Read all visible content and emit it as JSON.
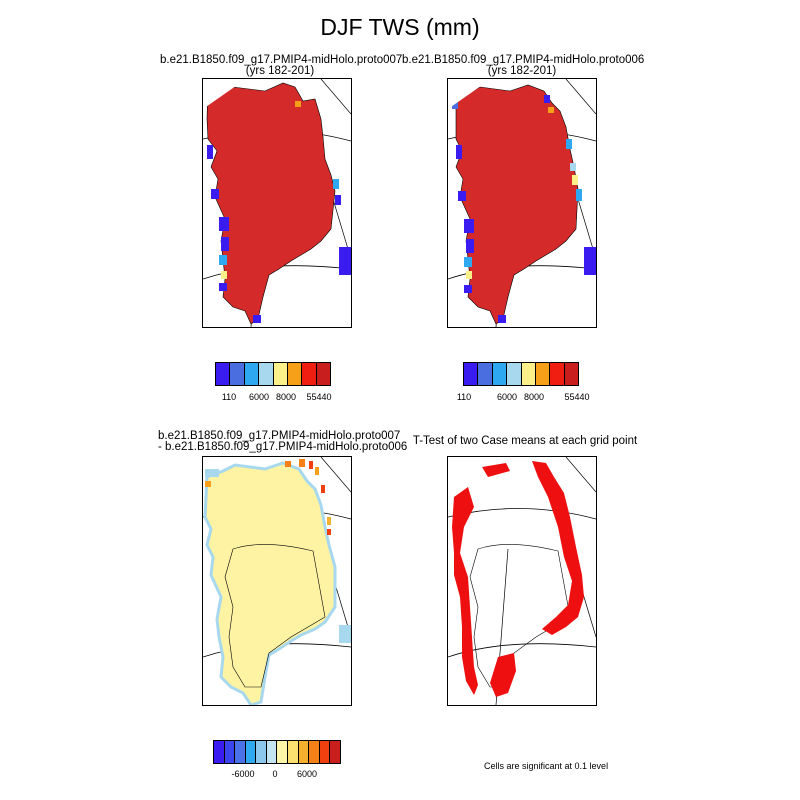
{
  "figure": {
    "title": "DJF TWS (mm)",
    "note": "Cells are significant at 0.1 level"
  },
  "panels": [
    {
      "id": "case1",
      "title_line1": "b.e21.B1850.f09_g17.PMIP4-midHolo.proto007",
      "title_line2": "(yrs 182-201)"
    },
    {
      "id": "case2",
      "title_line1": "b.e21.B1850.f09_g17.PMIP4-midHolo.proto006",
      "title_line2": "(yrs 182-201)"
    },
    {
      "id": "diff",
      "title_line1": "b.e21.B1850.f09_g17.PMIP4-midHolo.proto007",
      "title_line2": "- b.e21.B1850.f09_g17.PMIP4-midHolo.proto006"
    },
    {
      "id": "ttest",
      "title_line1": "T-Test of two Case means at each grid point",
      "title_line2": ""
    }
  ],
  "colorbars": {
    "abs": {
      "colors": [
        "#3a1cf0",
        "#4a6ee0",
        "#2ea8f0",
        "#a8d8ee",
        "#fcf08a",
        "#f5a018",
        "#f01e10",
        "#c81e1e"
      ],
      "tick_labels": [
        "110",
        "6000",
        "8000",
        "55440"
      ]
    },
    "diff": {
      "colors": [
        "#3a1cf0",
        "#3b45ee",
        "#4b72e6",
        "#2ea8f0",
        "#8cc8ee",
        "#c4e4f2",
        "#fdf6a8",
        "#fce070",
        "#f5b030",
        "#f58018",
        "#f04010",
        "#c81e1e"
      ],
      "tick_labels": [
        "-6000",
        "0",
        "6000"
      ]
    }
  },
  "colors": {
    "ice_sheet": "#d42a2a",
    "diff_fill": "#fdf3a3",
    "diff_edge": "#a8d8ee",
    "significant": "#ee1010"
  }
}
